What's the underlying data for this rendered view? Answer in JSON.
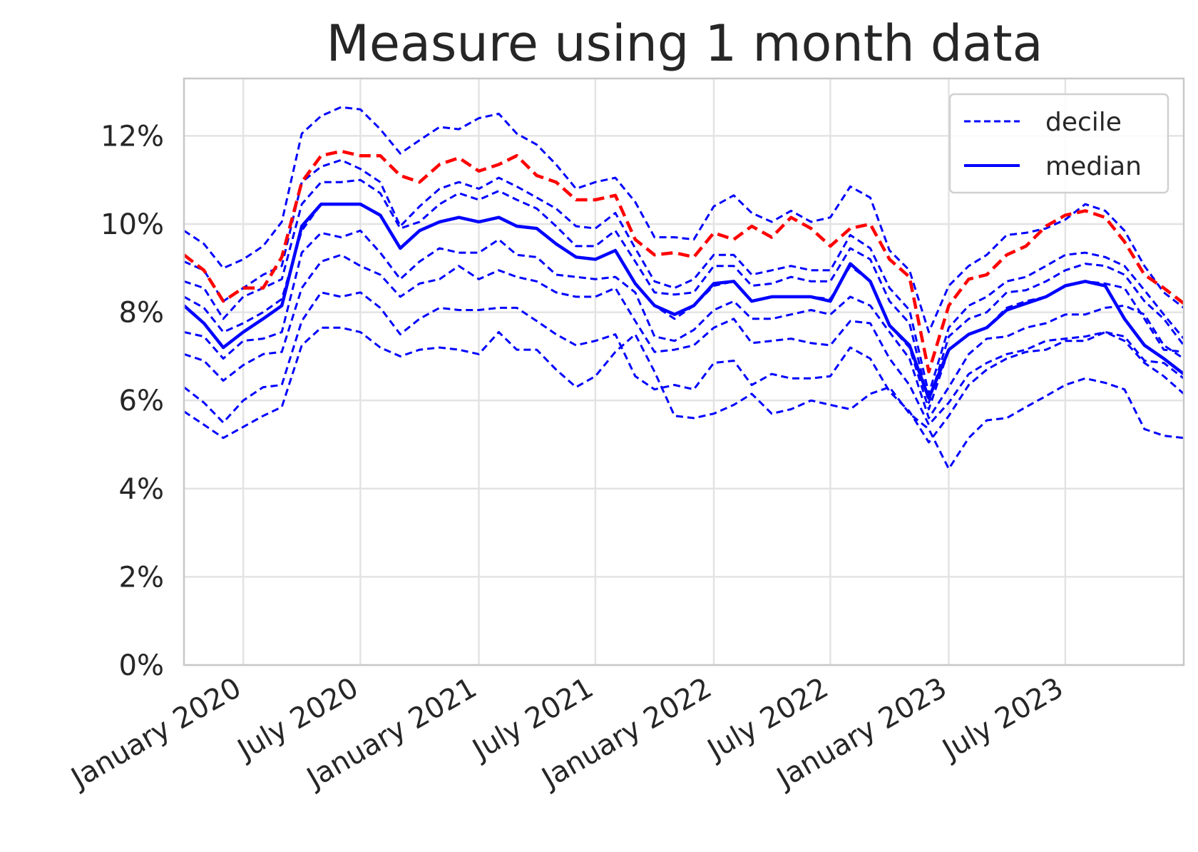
{
  "chart_data": {
    "type": "line",
    "title": "Measure using 1 month data",
    "xlabel": "",
    "ylabel": "",
    "ylim": [
      0,
      0.133
    ],
    "xlim": [
      "2019-10-01",
      "2024-01-01"
    ],
    "y_ticks": [
      0,
      0.02,
      0.04,
      0.06,
      0.08,
      0.1,
      0.12
    ],
    "y_tick_labels": [
      "0%",
      "2%",
      "4%",
      "6%",
      "8%",
      "10%",
      "12%"
    ],
    "x_ticks": [
      "2020-01-01",
      "2020-07-01",
      "2021-01-01",
      "2021-07-01",
      "2022-01-01",
      "2022-07-01",
      "2023-01-01",
      "2023-07-01"
    ],
    "x_tick_labels": [
      "January 2020",
      "July 2020",
      "January 2021",
      "July 2021",
      "January 2022",
      "July 2022",
      "January 2023",
      "July 2023"
    ],
    "grid": true,
    "legend": {
      "position": "top-right",
      "entries": [
        {
          "label": "decile",
          "style": "dashed"
        },
        {
          "label": "median",
          "style": "solid"
        }
      ]
    },
    "colors": {
      "decile": "#0000ff",
      "median": "#0000ff",
      "highlight": "#ff0000",
      "grid": "#e3e3e3",
      "frame": "#c8c8c8",
      "text": "#262626"
    },
    "x": [
      "2019-10-01",
      "2019-11-01",
      "2019-12-01",
      "2020-01-01",
      "2020-02-01",
      "2020-03-01",
      "2020-04-01",
      "2020-05-01",
      "2020-06-01",
      "2020-07-01",
      "2020-08-01",
      "2020-09-01",
      "2020-10-01",
      "2020-11-01",
      "2020-12-01",
      "2021-01-01",
      "2021-02-01",
      "2021-03-01",
      "2021-04-01",
      "2021-05-01",
      "2021-06-01",
      "2021-07-01",
      "2021-08-01",
      "2021-09-01",
      "2021-10-01",
      "2021-11-01",
      "2021-12-01",
      "2022-01-01",
      "2022-02-01",
      "2022-03-01",
      "2022-04-01",
      "2022-05-01",
      "2022-06-01",
      "2022-07-01",
      "2022-08-01",
      "2022-09-01",
      "2022-10-01",
      "2022-11-01",
      "2022-12-01",
      "2023-01-01",
      "2023-02-01",
      "2023-03-01",
      "2023-04-01",
      "2023-05-01",
      "2023-06-01",
      "2023-07-01",
      "2023-08-01",
      "2023-09-01",
      "2023-10-01",
      "2023-11-01",
      "2023-12-01",
      "2024-01-01"
    ],
    "series": [
      {
        "name": "decile",
        "style": "dashed",
        "color": "#0000ff",
        "values": [
          0.0575,
          0.0545,
          0.0515,
          0.054,
          0.0565,
          0.0585,
          0.0725,
          0.0765,
          0.0765,
          0.0755,
          0.072,
          0.07,
          0.0715,
          0.072,
          0.0715,
          0.0705,
          0.0755,
          0.0715,
          0.0715,
          0.067,
          0.063,
          0.0655,
          0.071,
          0.075,
          0.0665,
          0.0565,
          0.056,
          0.057,
          0.059,
          0.0615,
          0.057,
          0.058,
          0.06,
          0.059,
          0.058,
          0.0615,
          0.063,
          0.057,
          0.0535,
          0.0445,
          0.0515,
          0.0555,
          0.056,
          0.0585,
          0.061,
          0.0635,
          0.065,
          0.064,
          0.0625,
          0.0535,
          0.052,
          0.0515
        ]
      },
      {
        "name": "decile",
        "style": "dashed",
        "color": "#0000ff",
        "values": [
          0.063,
          0.0595,
          0.055,
          0.06,
          0.063,
          0.0635,
          0.078,
          0.0845,
          0.0835,
          0.0845,
          0.081,
          0.075,
          0.0785,
          0.081,
          0.0805,
          0.0805,
          0.081,
          0.081,
          0.078,
          0.075,
          0.0725,
          0.0735,
          0.075,
          0.0655,
          0.0625,
          0.0635,
          0.0625,
          0.0685,
          0.069,
          0.0635,
          0.066,
          0.065,
          0.065,
          0.0655,
          0.072,
          0.0695,
          0.062,
          0.0575,
          0.0505,
          0.0565,
          0.0635,
          0.067,
          0.0695,
          0.071,
          0.0715,
          0.0735,
          0.0735,
          0.0755,
          0.0735,
          0.0685,
          0.0655,
          0.0615
        ]
      },
      {
        "name": "decile",
        "style": "dashed",
        "color": "#0000ff",
        "values": [
          0.0705,
          0.069,
          0.0645,
          0.068,
          0.0705,
          0.071,
          0.0855,
          0.0915,
          0.093,
          0.0905,
          0.0885,
          0.0835,
          0.0865,
          0.0875,
          0.0905,
          0.0875,
          0.0895,
          0.088,
          0.087,
          0.0845,
          0.0835,
          0.0835,
          0.0855,
          0.078,
          0.071,
          0.0715,
          0.0725,
          0.0765,
          0.0785,
          0.073,
          0.0735,
          0.074,
          0.073,
          0.0725,
          0.078,
          0.0775,
          0.0695,
          0.0635,
          0.0545,
          0.0595,
          0.066,
          0.0685,
          0.0705,
          0.0715,
          0.0735,
          0.074,
          0.0745,
          0.0755,
          0.0745,
          0.069,
          0.0685,
          0.065
        ]
      },
      {
        "name": "decile",
        "style": "dashed",
        "color": "#0000ff",
        "values": [
          0.0755,
          0.0745,
          0.0695,
          0.0735,
          0.074,
          0.0755,
          0.0935,
          0.098,
          0.097,
          0.0985,
          0.0935,
          0.0875,
          0.0915,
          0.0945,
          0.0935,
          0.0935,
          0.0965,
          0.093,
          0.0925,
          0.0885,
          0.088,
          0.0875,
          0.088,
          0.0845,
          0.0745,
          0.0735,
          0.076,
          0.0805,
          0.0825,
          0.0785,
          0.0785,
          0.0795,
          0.0805,
          0.0795,
          0.0835,
          0.0815,
          0.0755,
          0.0695,
          0.056,
          0.063,
          0.0705,
          0.074,
          0.0745,
          0.0765,
          0.0775,
          0.0795,
          0.0795,
          0.081,
          0.0815,
          0.0795,
          0.0725,
          0.0695
        ]
      },
      {
        "name": "decile",
        "style": "dashed",
        "color": "#0000ff",
        "values": [
          0.0835,
          0.081,
          0.0755,
          0.0775,
          0.08,
          0.083,
          0.0985,
          0.1045,
          0.1045,
          0.1045,
          0.102,
          0.0945,
          0.0985,
          0.1005,
          0.1015,
          0.1005,
          0.1015,
          0.0995,
          0.099,
          0.0955,
          0.0925,
          0.092,
          0.094,
          0.0865,
          0.0815,
          0.0785,
          0.0815,
          0.086,
          0.087,
          0.0825,
          0.0835,
          0.0835,
          0.0835,
          0.083,
          0.0905,
          0.087,
          0.077,
          0.072,
          0.058,
          0.0715,
          0.075,
          0.0765,
          0.081,
          0.0825,
          0.0835,
          0.086,
          0.087,
          0.0865,
          0.0855,
          0.0785,
          0.0715,
          0.071
        ]
      },
      {
        "name": "decile",
        "style": "dashed",
        "color": "#0000ff",
        "values": [
          0.087,
          0.0855,
          0.0785,
          0.0835,
          0.0855,
          0.0875,
          0.1045,
          0.1095,
          0.1095,
          0.11,
          0.107,
          0.099,
          0.1005,
          0.1045,
          0.107,
          0.1055,
          0.1075,
          0.1055,
          0.1035,
          0.0995,
          0.095,
          0.095,
          0.0985,
          0.0915,
          0.0845,
          0.084,
          0.0845,
          0.0905,
          0.0905,
          0.086,
          0.0865,
          0.088,
          0.087,
          0.087,
          0.0945,
          0.092,
          0.0825,
          0.0775,
          0.0595,
          0.0745,
          0.0785,
          0.08,
          0.0845,
          0.085,
          0.087,
          0.0895,
          0.091,
          0.0905,
          0.0885,
          0.0825,
          0.0785,
          0.0725
        ]
      },
      {
        "name": "decile",
        "style": "dashed",
        "color": "#0000ff",
        "values": [
          0.0915,
          0.0895,
          0.0825,
          0.0855,
          0.0885,
          0.0905,
          0.1095,
          0.113,
          0.1145,
          0.1125,
          0.1095,
          0.0995,
          0.104,
          0.108,
          0.1095,
          0.108,
          0.1105,
          0.1085,
          0.106,
          0.1035,
          0.0995,
          0.099,
          0.1025,
          0.0945,
          0.087,
          0.0855,
          0.0875,
          0.093,
          0.093,
          0.0885,
          0.0895,
          0.0905,
          0.0895,
          0.0895,
          0.0975,
          0.0945,
          0.0855,
          0.0805,
          0.0615,
          0.0765,
          0.0815,
          0.0835,
          0.087,
          0.088,
          0.0905,
          0.093,
          0.0935,
          0.0925,
          0.0905,
          0.085,
          0.0795,
          0.074
        ]
      },
      {
        "name": "decile",
        "style": "dashed",
        "color": "#0000ff",
        "values": [
          0.0985,
          0.0955,
          0.09,
          0.092,
          0.095,
          0.1005,
          0.1205,
          0.1245,
          0.1265,
          0.126,
          0.1215,
          0.116,
          0.119,
          0.122,
          0.1215,
          0.124,
          0.125,
          0.1205,
          0.118,
          0.1135,
          0.108,
          0.1095,
          0.1105,
          0.105,
          0.097,
          0.097,
          0.0965,
          0.104,
          0.1065,
          0.1025,
          0.1005,
          0.103,
          0.1005,
          0.1015,
          0.1085,
          0.106,
          0.094,
          0.0895,
          0.0755,
          0.086,
          0.0905,
          0.093,
          0.0975,
          0.098,
          0.099,
          0.101,
          0.1045,
          0.103,
          0.0985,
          0.0905,
          0.0845,
          0.081
        ]
      },
      {
        "name": "median",
        "style": "solid",
        "color": "#0000ff",
        "values": [
          0.0815,
          0.0775,
          0.072,
          0.0755,
          0.0785,
          0.0815,
          0.0995,
          0.1045,
          0.1045,
          0.1045,
          0.102,
          0.0945,
          0.0985,
          0.1005,
          0.1015,
          0.1005,
          0.1015,
          0.0995,
          0.099,
          0.0955,
          0.0925,
          0.092,
          0.094,
          0.0865,
          0.0815,
          0.0795,
          0.0815,
          0.0865,
          0.087,
          0.0825,
          0.0835,
          0.0835,
          0.0835,
          0.0825,
          0.091,
          0.087,
          0.077,
          0.0725,
          0.0605,
          0.0715,
          0.075,
          0.0765,
          0.0805,
          0.082,
          0.0835,
          0.086,
          0.087,
          0.086,
          0.0785,
          0.0725,
          0.0695,
          0.066
        ]
      },
      {
        "name": "",
        "style": "dashed",
        "color": "#ff0000",
        "values": [
          0.093,
          0.0895,
          0.0825,
          0.0855,
          0.0855,
          0.0925,
          0.1095,
          0.1155,
          0.1165,
          0.1155,
          0.1155,
          0.111,
          0.1095,
          0.1135,
          0.115,
          0.112,
          0.1135,
          0.1155,
          0.111,
          0.1095,
          0.1055,
          0.1055,
          0.1065,
          0.0965,
          0.093,
          0.0935,
          0.0925,
          0.098,
          0.0965,
          0.0995,
          0.097,
          0.1015,
          0.099,
          0.095,
          0.099,
          0.1,
          0.092,
          0.088,
          0.0665,
          0.0815,
          0.0875,
          0.0885,
          0.093,
          0.095,
          0.0995,
          0.102,
          0.103,
          0.1015,
          0.096,
          0.0885,
          0.0855,
          0.082
        ]
      }
    ]
  }
}
